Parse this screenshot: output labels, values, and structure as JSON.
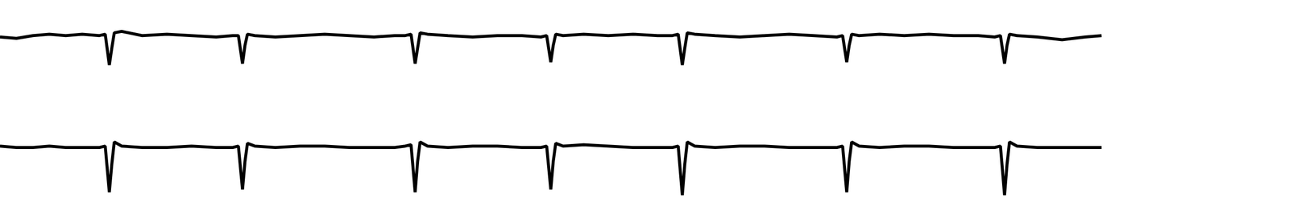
{
  "chart_data": [
    {
      "type": "line",
      "color": "#000000",
      "grid": false,
      "tick_labels": false,
      "xlim": [
        0,
        1568
      ],
      "ylim": [
        -2,
        1
      ],
      "x": [
        0,
        20,
        40,
        60,
        80,
        100,
        121,
        128,
        133,
        136,
        139,
        148,
        173,
        203,
        233,
        263,
        283,
        290,
        295,
        298,
        301,
        310,
        335,
        365,
        395,
        425,
        455,
        480,
        493,
        500,
        505,
        508,
        511,
        520,
        545,
        575,
        605,
        635,
        658,
        665,
        670,
        673,
        676,
        685,
        710,
        740,
        770,
        800,
        818,
        825,
        830,
        833,
        836,
        845,
        870,
        900,
        930,
        960,
        990,
        1018,
        1025,
        1030,
        1033,
        1036,
        1045,
        1070,
        1100,
        1130,
        1160,
        1190,
        1210,
        1217,
        1222,
        1225,
        1228,
        1237,
        1262,
        1292,
        1320,
        1340
      ],
      "values": [
        0.0,
        -0.05,
        0.05,
        0.1,
        0.05,
        0.1,
        0.05,
        0.1,
        -1.0,
        -0.4,
        0.15,
        0.2,
        0.05,
        0.1,
        0.05,
        0.0,
        0.05,
        0.05,
        -0.95,
        -0.3,
        0.1,
        0.05,
        0.0,
        0.05,
        0.1,
        0.05,
        0.0,
        0.05,
        0.05,
        0.1,
        -0.95,
        -0.4,
        0.15,
        0.1,
        0.05,
        0.0,
        0.05,
        0.05,
        0.0,
        0.05,
        -0.9,
        -0.3,
        0.1,
        0.05,
        0.1,
        0.05,
        0.1,
        0.05,
        0.05,
        0.1,
        -1.0,
        -0.4,
        0.15,
        0.1,
        0.05,
        0.0,
        0.05,
        0.1,
        0.05,
        0.0,
        0.05,
        -0.9,
        -0.3,
        0.1,
        0.05,
        0.1,
        0.05,
        0.1,
        0.05,
        0.05,
        0.0,
        0.05,
        -0.95,
        -0.3,
        0.1,
        0.05,
        0.0,
        -0.1,
        0.0,
        0.05
      ]
    },
    {
      "type": "line",
      "color": "#000000",
      "grid": false,
      "tick_labels": false,
      "xlim": [
        0,
        1568
      ],
      "ylim": [
        -2,
        1
      ],
      "x": [
        0,
        20,
        40,
        60,
        80,
        100,
        121,
        128,
        133,
        136,
        139,
        148,
        173,
        203,
        233,
        263,
        283,
        290,
        295,
        298,
        301,
        310,
        335,
        365,
        395,
        425,
        455,
        480,
        493,
        500,
        505,
        508,
        511,
        520,
        545,
        575,
        605,
        635,
        658,
        665,
        670,
        673,
        676,
        685,
        710,
        740,
        770,
        800,
        818,
        825,
        830,
        833,
        836,
        845,
        870,
        900,
        930,
        960,
        990,
        1018,
        1025,
        1030,
        1033,
        1036,
        1045,
        1070,
        1100,
        1130,
        1160,
        1190,
        1210,
        1217,
        1222,
        1225,
        1228,
        1237,
        1262,
        1292,
        1320,
        1340
      ],
      "values": [
        0.05,
        0.0,
        0.0,
        0.05,
        0.0,
        0.0,
        0.0,
        0.05,
        -1.6,
        -0.6,
        0.2,
        0.05,
        0.0,
        0.0,
        0.05,
        0.0,
        0.0,
        0.05,
        -1.5,
        -0.5,
        0.15,
        0.05,
        0.0,
        0.05,
        0.05,
        0.0,
        0.0,
        0.0,
        0.05,
        0.1,
        -1.6,
        -0.5,
        0.2,
        0.05,
        0.0,
        0.05,
        0.05,
        0.0,
        0.0,
        0.05,
        -1.5,
        -0.5,
        0.15,
        0.05,
        0.1,
        0.05,
        0.0,
        0.0,
        0.0,
        0.05,
        -1.7,
        -0.6,
        0.2,
        0.05,
        0.0,
        0.05,
        0.05,
        0.0,
        0.0,
        0.0,
        0.05,
        -1.6,
        -0.5,
        0.2,
        0.05,
        0.0,
        0.05,
        0.05,
        0.0,
        0.0,
        0.0,
        0.05,
        -1.7,
        -0.6,
        0.2,
        0.05,
        0.0,
        0.0,
        0.0,
        0.0
      ]
    }
  ]
}
